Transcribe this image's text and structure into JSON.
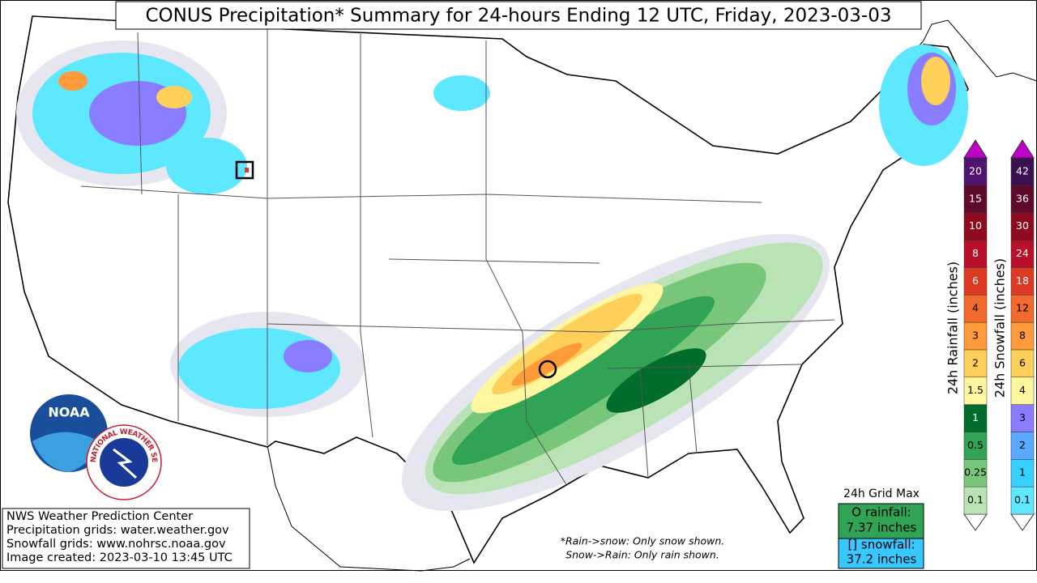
{
  "title": "CONUS Precipitation* Summary for 24-hours Ending 12 UTC, Friday, 2023-03-03",
  "rainfall_scale": {
    "label": "24h Rainfall (inches)",
    "ticks": [
      0.1,
      0.25,
      0.5,
      1,
      1.5,
      2,
      3,
      4,
      6,
      8,
      10,
      15,
      20
    ],
    "colors": [
      "#b9e3b5",
      "#78c679",
      "#31a354",
      "#006d2c",
      "#fff7a0",
      "#fed05a",
      "#fe9a3a",
      "#f26a2c",
      "#dc3a22",
      "#b8102a",
      "#8e0a1e",
      "#5e0a2a",
      "#50146e"
    ],
    "over_color": "#c000c8",
    "under_color": "#ffffff"
  },
  "snowfall_scale": {
    "label": "24h Snowfall (inches)",
    "ticks": [
      0.1,
      1,
      2,
      3,
      4,
      6,
      8,
      12,
      18,
      24,
      30,
      36,
      42
    ],
    "colors": [
      "#5de8ff",
      "#36d0ff",
      "#5aa8ff",
      "#8a7cff",
      "#fff7a0",
      "#fed05a",
      "#fe9a3a",
      "#f26a2c",
      "#dc3a22",
      "#b8102a",
      "#8e0a1e",
      "#5e0a2a",
      "#3c1050"
    ],
    "over_color": "#c000c8",
    "under_color": "#ffffff"
  },
  "grid_max": {
    "heading": "24h Grid Max",
    "rainfall_label": "O rainfall:",
    "rainfall_value": "7.37 inches",
    "snowfall_label": "[] snowfall:",
    "snowfall_value": "37.2 inches"
  },
  "notes": [
    "*Rain->snow: Only snow shown.",
    "Snow->Rain: Only rain shown."
  ],
  "credits": [
    "NWS Weather Prediction Center",
    "Precipitation grids: water.weather.gov",
    "Snowfall grids: www.nohrsc.noaa.gov",
    "Image created: 2023-03-10 13:45 UTC"
  ],
  "logos": {
    "noaa": "NOAA",
    "nws": "NATIONAL WEATHER SERVICE"
  }
}
